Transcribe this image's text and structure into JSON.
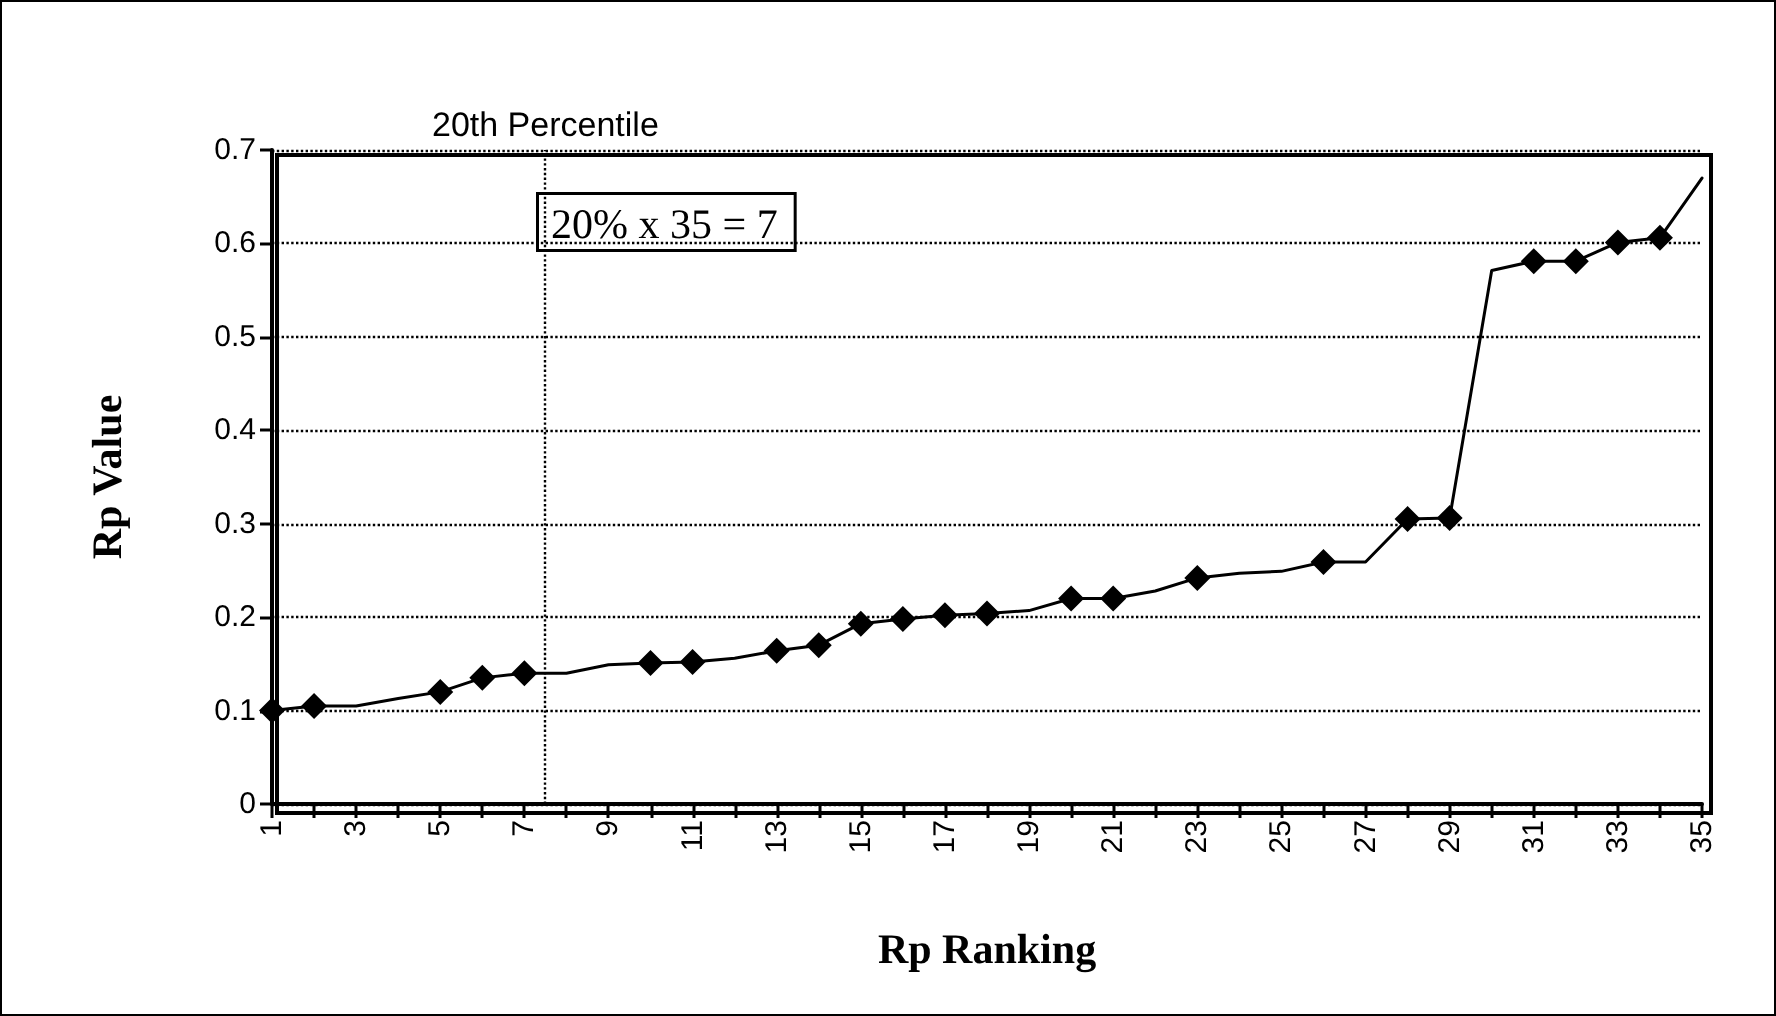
{
  "chart_data": {
    "type": "line",
    "xlabel": "Rp Ranking",
    "ylabel": "Rp Value",
    "annotations": [
      "20% x 35 = 7"
    ],
    "xlim": [
      1,
      35
    ],
    "xticks": [
      1,
      {
        "value": 2,
        "label": null
      },
      3,
      {
        "value": 4,
        "label": null
      },
      5,
      {
        "value": 6,
        "label": null
      },
      7,
      {
        "value": 8,
        "label": null
      },
      9,
      {
        "value": 10,
        "label": null
      },
      11,
      {
        "value": 12,
        "label": null
      },
      13,
      {
        "value": 14,
        "label": null
      },
      15,
      {
        "value": 16,
        "label": null
      },
      17,
      {
        "value": 18,
        "label": null
      },
      19,
      {
        "value": 20,
        "label": null
      },
      21,
      {
        "value": 22,
        "label": null
      },
      23,
      {
        "value": 24,
        "label": null
      },
      25,
      {
        "value": 26,
        "label": null
      },
      27,
      {
        "value": 28,
        "label": null
      },
      29,
      {
        "value": 30,
        "label": null
      },
      31,
      {
        "value": 32,
        "label": null
      },
      33,
      {
        "value": 34,
        "label": null
      },
      35
    ],
    "ylim": [
      0,
      0.7
    ],
    "yticks": [
      0,
      0.1,
      0.2,
      0.3,
      0.4,
      0.5,
      0.6,
      0.7
    ],
    "grid": "y",
    "ref_lines": [
      {
        "axis": "x",
        "value": 7.5,
        "label": "20th Percentile",
        "line_style": "dotted",
        "color": "#000000"
      }
    ],
    "series": [
      {
        "color": "#000000",
        "marker": "none",
        "line_style": "solid",
        "x": [
          1,
          2,
          3,
          4,
          5,
          6,
          7,
          8,
          9,
          10,
          11,
          12,
          13,
          14,
          15,
          16,
          17,
          18,
          19,
          20,
          21,
          22,
          23,
          24,
          25,
          26,
          27,
          28,
          29,
          30,
          31,
          32,
          33,
          34,
          35
        ],
        "values": [
          0.1,
          0.105,
          0.105,
          0.113,
          0.12,
          0.135,
          0.14,
          0.14,
          0.149,
          0.151,
          0.152,
          0.156,
          0.164,
          0.17,
          0.193,
          0.198,
          0.202,
          0.204,
          0.207,
          0.22,
          0.22,
          0.228,
          0.242,
          0.247,
          0.249,
          0.259,
          0.259,
          0.305,
          0.306,
          0.571,
          0.581,
          0.581,
          0.601,
          0.606,
          0.67
        ]
      },
      {
        "type": "scatter",
        "color": "#000000",
        "marker": "diamond",
        "x": [
          1,
          2,
          5,
          6,
          7,
          10,
          11,
          13,
          14,
          15,
          16,
          17,
          18,
          20,
          21,
          23,
          26,
          28,
          29,
          31,
          32,
          33,
          34
        ],
        "values": [
          0.1,
          0.105,
          0.12,
          0.135,
          0.14,
          0.151,
          0.152,
          0.164,
          0.17,
          0.193,
          0.198,
          0.202,
          0.204,
          0.22,
          0.22,
          0.242,
          0.259,
          0.305,
          0.306,
          0.581,
          0.581,
          0.601,
          0.606
        ]
      }
    ]
  }
}
